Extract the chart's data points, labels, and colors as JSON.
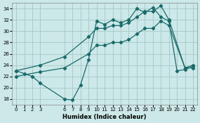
{
  "xlabel": "Humidex (Indice chaleur)",
  "xlim": [
    -0.5,
    22.5
  ],
  "ylim": [
    17,
    35
  ],
  "yticks": [
    18,
    20,
    22,
    24,
    26,
    28,
    30,
    32,
    34
  ],
  "xticks": [
    0,
    1,
    2,
    3,
    6,
    7,
    8,
    9,
    10,
    11,
    12,
    13,
    14,
    15,
    16,
    17,
    18,
    19,
    20,
    21,
    22
  ],
  "bg_color": "#cce8e8",
  "grid_color": "#aacccc",
  "line_color": "#1a6b6b",
  "line1_x": [
    0,
    1,
    2,
    3,
    6,
    7,
    8,
    9,
    10,
    11,
    12,
    13,
    14,
    15,
    16,
    17,
    18,
    19,
    20,
    21,
    22
  ],
  "line1_y": [
    23.0,
    22.5,
    22.0,
    20.8,
    18.0,
    17.8,
    20.5,
    25.0,
    31.8,
    31.2,
    32.0,
    31.5,
    32.0,
    34.0,
    33.3,
    34.2,
    32.5,
    31.8,
    23.0,
    23.2,
    23.8
  ],
  "line2_x": [
    0,
    3,
    6,
    9,
    10,
    11,
    12,
    13,
    14,
    15,
    16,
    17,
    18,
    19,
    21,
    22
  ],
  "line2_y": [
    23.0,
    24.0,
    25.5,
    29.0,
    30.5,
    30.5,
    31.0,
    31.0,
    31.5,
    32.5,
    33.5,
    33.5,
    34.5,
    32.0,
    23.5,
    24.0
  ],
  "line3_x": [
    0,
    3,
    6,
    9,
    10,
    11,
    12,
    13,
    14,
    15,
    16,
    17,
    18,
    19,
    21,
    22
  ],
  "line3_y": [
    22.0,
    22.8,
    23.5,
    26.0,
    27.5,
    27.5,
    28.0,
    28.0,
    28.5,
    29.5,
    30.5,
    30.5,
    31.8,
    31.0,
    23.5,
    23.5
  ]
}
